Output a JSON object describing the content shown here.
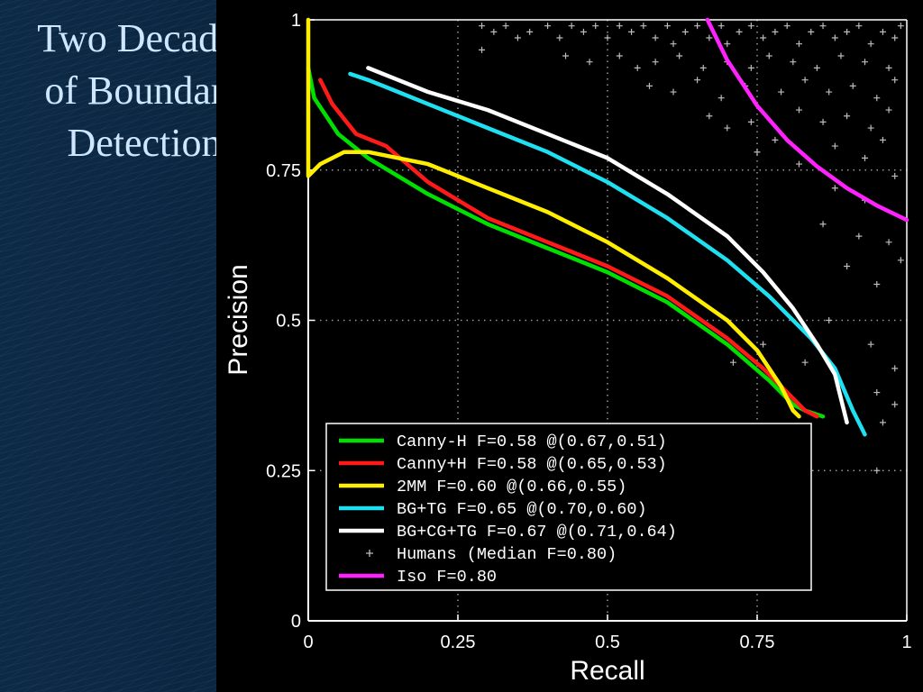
{
  "slide": {
    "title": "Two Decades\nof Boundary\nDetection"
  },
  "chart_data": {
    "type": "line",
    "xlabel": "Recall",
    "ylabel": "Precision",
    "xlim": [
      0,
      1
    ],
    "ylim": [
      0,
      1
    ],
    "xticks": [
      "0",
      "0.25",
      "0.5",
      "0.75",
      "1"
    ],
    "yticks": [
      "0",
      "0.25",
      "0.5",
      "0.75",
      "1"
    ],
    "grid": true,
    "legend_position": "bottom-center",
    "series": [
      {
        "name": "Canny-H F=0.58 @(0.67,0.51)",
        "color": "#00e000",
        "points": [
          [
            0.0,
            0.92
          ],
          [
            0.01,
            0.87
          ],
          [
            0.05,
            0.81
          ],
          [
            0.1,
            0.77
          ],
          [
            0.2,
            0.71
          ],
          [
            0.3,
            0.66
          ],
          [
            0.4,
            0.62
          ],
          [
            0.5,
            0.58
          ],
          [
            0.6,
            0.53
          ],
          [
            0.7,
            0.46
          ],
          [
            0.77,
            0.4
          ],
          [
            0.81,
            0.36
          ],
          [
            0.83,
            0.35
          ],
          [
            0.86,
            0.34
          ]
        ]
      },
      {
        "name": "Canny+H F=0.58 @(0.65,0.53)",
        "color": "#ff1a1a",
        "points": [
          [
            0.02,
            0.9
          ],
          [
            0.04,
            0.86
          ],
          [
            0.08,
            0.81
          ],
          [
            0.13,
            0.79
          ],
          [
            0.2,
            0.73
          ],
          [
            0.3,
            0.67
          ],
          [
            0.4,
            0.63
          ],
          [
            0.5,
            0.59
          ],
          [
            0.6,
            0.54
          ],
          [
            0.7,
            0.47
          ],
          [
            0.76,
            0.42
          ],
          [
            0.8,
            0.38
          ],
          [
            0.83,
            0.35
          ],
          [
            0.85,
            0.34
          ]
        ]
      },
      {
        "name": "2MM F=0.60 @(0.66,0.55)",
        "color": "#ffee00",
        "points": [
          [
            0.0,
            1.0
          ],
          [
            0.0,
            0.74
          ],
          [
            0.02,
            0.76
          ],
          [
            0.06,
            0.78
          ],
          [
            0.1,
            0.78
          ],
          [
            0.2,
            0.76
          ],
          [
            0.3,
            0.72
          ],
          [
            0.4,
            0.68
          ],
          [
            0.5,
            0.63
          ],
          [
            0.6,
            0.57
          ],
          [
            0.7,
            0.5
          ],
          [
            0.75,
            0.45
          ],
          [
            0.79,
            0.39
          ],
          [
            0.81,
            0.35
          ],
          [
            0.82,
            0.34
          ]
        ]
      },
      {
        "name": "BG+TG F=0.65 @(0.70,0.60)",
        "color": "#1ee0f0",
        "points": [
          [
            0.07,
            0.91
          ],
          [
            0.1,
            0.9
          ],
          [
            0.15,
            0.88
          ],
          [
            0.2,
            0.86
          ],
          [
            0.3,
            0.82
          ],
          [
            0.4,
            0.78
          ],
          [
            0.5,
            0.73
          ],
          [
            0.6,
            0.67
          ],
          [
            0.7,
            0.6
          ],
          [
            0.77,
            0.54
          ],
          [
            0.84,
            0.47
          ],
          [
            0.88,
            0.42
          ],
          [
            0.91,
            0.35
          ],
          [
            0.93,
            0.31
          ]
        ]
      },
      {
        "name": "BG+CG+TG F=0.67 @(0.71,0.64)",
        "color": "#ffffff",
        "points": [
          [
            0.1,
            0.92
          ],
          [
            0.15,
            0.9
          ],
          [
            0.2,
            0.88
          ],
          [
            0.3,
            0.85
          ],
          [
            0.4,
            0.81
          ],
          [
            0.5,
            0.77
          ],
          [
            0.6,
            0.71
          ],
          [
            0.7,
            0.64
          ],
          [
            0.76,
            0.58
          ],
          [
            0.81,
            0.52
          ],
          [
            0.85,
            0.46
          ],
          [
            0.88,
            0.41
          ],
          [
            0.9,
            0.33
          ]
        ]
      },
      {
        "name": "Iso F=0.80",
        "color": "#ff22ff",
        "points": [
          [
            0.667,
            1.0
          ],
          [
            0.7,
            0.933
          ],
          [
            0.75,
            0.857
          ],
          [
            0.8,
            0.8
          ],
          [
            0.85,
            0.756
          ],
          [
            0.9,
            0.72
          ],
          [
            0.95,
            0.691
          ],
          [
            1.0,
            0.667
          ]
        ]
      }
    ],
    "scatter": {
      "name": "Humans (Median F=0.80)",
      "color": "#bbbbbb",
      "marker": "+",
      "points": [
        [
          0.29,
          0.99
        ],
        [
          0.31,
          0.98
        ],
        [
          0.33,
          0.99
        ],
        [
          0.29,
          0.95
        ],
        [
          0.35,
          0.97
        ],
        [
          0.37,
          0.98
        ],
        [
          0.4,
          0.99
        ],
        [
          0.42,
          0.97
        ],
        [
          0.44,
          0.99
        ],
        [
          0.46,
          0.98
        ],
        [
          0.48,
          0.99
        ],
        [
          0.5,
          0.97
        ],
        [
          0.52,
          0.99
        ],
        [
          0.54,
          0.98
        ],
        [
          0.56,
          0.99
        ],
        [
          0.58,
          0.97
        ],
        [
          0.6,
          0.99
        ],
        [
          0.61,
          0.96
        ],
        [
          0.63,
          0.98
        ],
        [
          0.65,
          0.99
        ],
        [
          0.67,
          0.97
        ],
        [
          0.69,
          0.99
        ],
        [
          0.7,
          0.96
        ],
        [
          0.72,
          0.98
        ],
        [
          0.74,
          0.99
        ],
        [
          0.76,
          0.97
        ],
        [
          0.78,
          0.98
        ],
        [
          0.8,
          0.99
        ],
        [
          0.82,
          0.96
        ],
        [
          0.84,
          0.98
        ],
        [
          0.86,
          0.99
        ],
        [
          0.88,
          0.97
        ],
        [
          0.9,
          0.98
        ],
        [
          0.92,
          0.99
        ],
        [
          0.94,
          0.96
        ],
        [
          0.96,
          0.98
        ],
        [
          0.98,
          0.97
        ],
        [
          0.99,
          0.99
        ],
        [
          0.43,
          0.94
        ],
        [
          0.47,
          0.93
        ],
        [
          0.52,
          0.94
        ],
        [
          0.55,
          0.92
        ],
        [
          0.58,
          0.93
        ],
        [
          0.62,
          0.94
        ],
        [
          0.66,
          0.92
        ],
        [
          0.7,
          0.93
        ],
        [
          0.74,
          0.92
        ],
        [
          0.77,
          0.94
        ],
        [
          0.81,
          0.93
        ],
        [
          0.85,
          0.92
        ],
        [
          0.89,
          0.94
        ],
        [
          0.93,
          0.93
        ],
        [
          0.97,
          0.92
        ],
        [
          0.57,
          0.89
        ],
        [
          0.61,
          0.88
        ],
        [
          0.65,
          0.9
        ],
        [
          0.69,
          0.87
        ],
        [
          0.73,
          0.89
        ],
        [
          0.79,
          0.88
        ],
        [
          0.83,
          0.9
        ],
        [
          0.87,
          0.88
        ],
        [
          0.91,
          0.89
        ],
        [
          0.95,
          0.87
        ],
        [
          0.98,
          0.9
        ],
        [
          0.67,
          0.84
        ],
        [
          0.7,
          0.82
        ],
        [
          0.74,
          0.83
        ],
        [
          0.78,
          0.8
        ],
        [
          0.82,
          0.85
        ],
        [
          0.86,
          0.83
        ],
        [
          0.9,
          0.84
        ],
        [
          0.94,
          0.82
        ],
        [
          0.97,
          0.85
        ],
        [
          0.75,
          0.78
        ],
        [
          0.82,
          0.76
        ],
        [
          0.88,
          0.79
        ],
        [
          0.93,
          0.77
        ],
        [
          0.96,
          0.8
        ],
        [
          0.88,
          0.72
        ],
        [
          0.93,
          0.7
        ],
        [
          0.98,
          0.74
        ],
        [
          0.86,
          0.66
        ],
        [
          0.92,
          0.64
        ],
        [
          0.97,
          0.63
        ],
        [
          0.9,
          0.59
        ],
        [
          0.95,
          0.56
        ],
        [
          0.99,
          0.6
        ],
        [
          0.87,
          0.5
        ],
        [
          0.94,
          0.46
        ],
        [
          0.98,
          0.42
        ],
        [
          0.95,
          0.38
        ],
        [
          0.98,
          0.36
        ],
        [
          0.76,
          0.46
        ],
        [
          0.71,
          0.43
        ],
        [
          0.83,
          0.43
        ],
        [
          0.96,
          0.33
        ],
        [
          0.95,
          0.25
        ]
      ]
    },
    "legend": [
      {
        "color": "#00e000",
        "label": "  Canny-H F=0.58 @(0.67,0.51)",
        "marker": "line"
      },
      {
        "color": "#ff1a1a",
        "label": "  Canny+H F=0.58 @(0.65,0.53)",
        "marker": "line"
      },
      {
        "color": "#ffee00",
        "label": "      2MM F=0.60 @(0.66,0.55)",
        "marker": "line"
      },
      {
        "color": "#1ee0f0",
        "label": "    BG+TG F=0.65 @(0.70,0.60)",
        "marker": "line"
      },
      {
        "color": "#ffffff",
        "label": "BG+CG+TG F=0.67 @(0.71,0.64)",
        "marker": "line"
      },
      {
        "color": "#bbbbbb",
        "label": "Humans (Median F=0.80)",
        "marker": "plus"
      },
      {
        "color": "#ff22ff",
        "label": "Iso F=0.80",
        "marker": "line"
      }
    ]
  }
}
